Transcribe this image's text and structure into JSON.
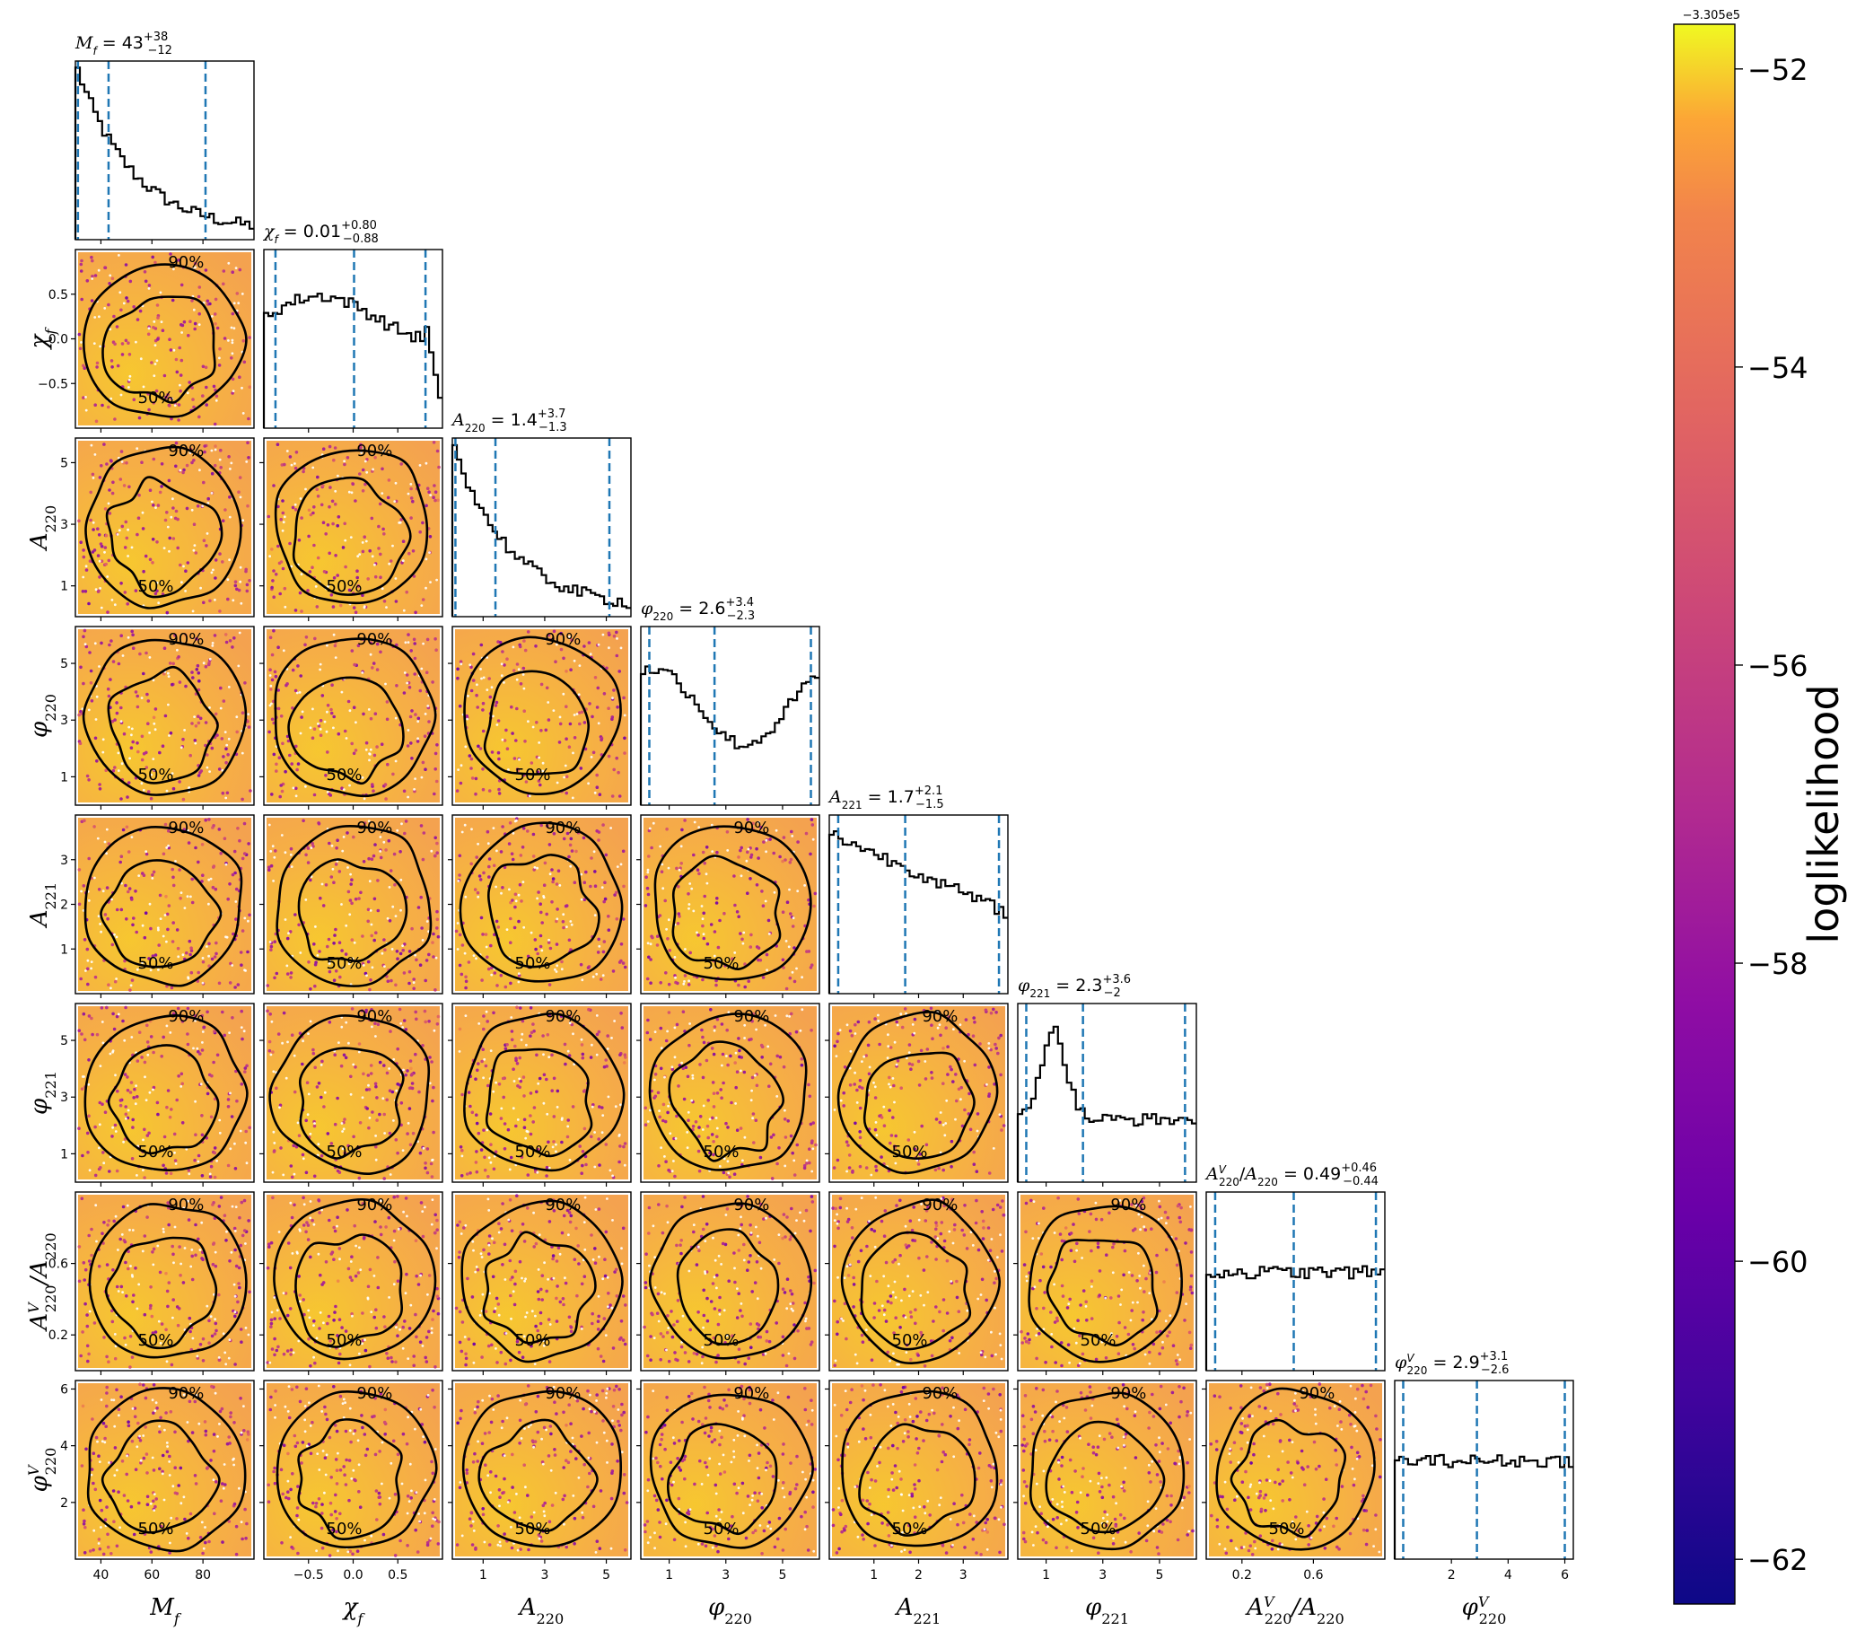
{
  "chart_data": {
    "type": "corner",
    "parameters": [
      {
        "key": "Mf",
        "axis_label": "M_f",
        "sub": "f",
        "sup": "",
        "range": [
          30,
          100
        ],
        "ticks": [
          40,
          60,
          80
        ],
        "tick_labels": [
          "40",
          "60",
          "80"
        ],
        "title": {
          "prefix": "M_f = 43",
          "plus": "+38",
          "minus": "−12"
        },
        "quantiles": [
          31,
          43,
          81
        ],
        "hist": "decay"
      },
      {
        "key": "chi_f",
        "axis_label": "χ_f",
        "sub": "f",
        "sup": "",
        "range": [
          -1,
          1
        ],
        "ticks": [
          -0.5,
          0.0,
          0.5
        ],
        "tick_labels": [
          "−0.5",
          "0.0",
          "0.5"
        ],
        "title": {
          "prefix": "χ_f = 0.01",
          "plus": "+0.80",
          "minus": "−0.88"
        },
        "quantiles": [
          -0.87,
          0.01,
          0.81
        ],
        "hist": "flat_drop"
      },
      {
        "key": "A220",
        "axis_label": "A_220",
        "sub": "220",
        "sup": "",
        "range": [
          0,
          5.8
        ],
        "ticks": [
          1,
          3,
          5
        ],
        "tick_labels": [
          "1",
          "3",
          "5"
        ],
        "title": {
          "prefix": "A_220 = 1.4",
          "plus": "+3.7",
          "minus": "−1.3"
        },
        "quantiles": [
          0.1,
          1.4,
          5.1
        ],
        "hist": "decay"
      },
      {
        "key": "phi220",
        "axis_label": "φ_220",
        "sub": "220",
        "sup": "",
        "range": [
          0,
          6.3
        ],
        "ticks": [
          1,
          3,
          5
        ],
        "tick_labels": [
          "1",
          "3",
          "5"
        ],
        "title": {
          "prefix": "φ_220 = 2.6",
          "plus": "+3.4",
          "minus": "−2.3"
        },
        "quantiles": [
          0.3,
          2.6,
          6.0
        ],
        "hist": "valley"
      },
      {
        "key": "A221",
        "axis_label": "A_221",
        "sub": "221",
        "sup": "",
        "range": [
          0,
          4.0
        ],
        "ticks": [
          1,
          2,
          3
        ],
        "tick_labels": [
          "1",
          "2",
          "3"
        ],
        "title": {
          "prefix": "A_221 = 1.7",
          "plus": "+2.1",
          "minus": "−1.5"
        },
        "quantiles": [
          0.2,
          1.7,
          3.8
        ],
        "hist": "slope"
      },
      {
        "key": "phi221",
        "axis_label": "φ_221",
        "sub": "221",
        "sup": "",
        "range": [
          0,
          6.3
        ],
        "ticks": [
          1,
          3,
          5
        ],
        "tick_labels": [
          "1",
          "3",
          "5"
        ],
        "title": {
          "prefix": "φ_221 = 2.3",
          "plus": "+3.6",
          "minus": "−2"
        },
        "quantiles": [
          0.3,
          2.3,
          5.9
        ],
        "hist": "peak"
      },
      {
        "key": "AV220",
        "axis_label": "A^V_220/A_220",
        "sub": "220",
        "sup": "V",
        "range": [
          0,
          1
        ],
        "ticks": [
          0.2,
          0.6
        ],
        "tick_labels": [
          "0.2",
          "0.6"
        ],
        "title": {
          "prefix": "A^V_220/A_220 = 0.49",
          "plus": "+0.46",
          "minus": "−0.44"
        },
        "quantiles": [
          0.05,
          0.49,
          0.95
        ],
        "hist": "flat"
      },
      {
        "key": "phiV220",
        "axis_label": "φ^V_220",
        "sub": "220",
        "sup": "V",
        "range": [
          0,
          6.3
        ],
        "ticks": [
          2,
          4,
          6
        ],
        "tick_labels": [
          "2",
          "4",
          "6"
        ],
        "title": {
          "prefix": "φ^V_220 = 2.9",
          "plus": "+3.1",
          "minus": "−2.6"
        },
        "quantiles": [
          0.3,
          2.9,
          6.0
        ],
        "hist": "flat"
      }
    ],
    "contour_levels": [
      "50%",
      "90%"
    ],
    "colorbar": {
      "label": "loglikelihood",
      "offset_text": "−3.305e5",
      "range": [
        -62.3,
        -51.7
      ],
      "ticks": [
        -52,
        -54,
        -56,
        -58,
        -60,
        -62
      ],
      "tick_labels": [
        "−52",
        "−54",
        "−56",
        "−58",
        "−60",
        "−62"
      ],
      "colormap": "plasma"
    },
    "quantile_line_color": "#1f77b4",
    "grid": false
  }
}
